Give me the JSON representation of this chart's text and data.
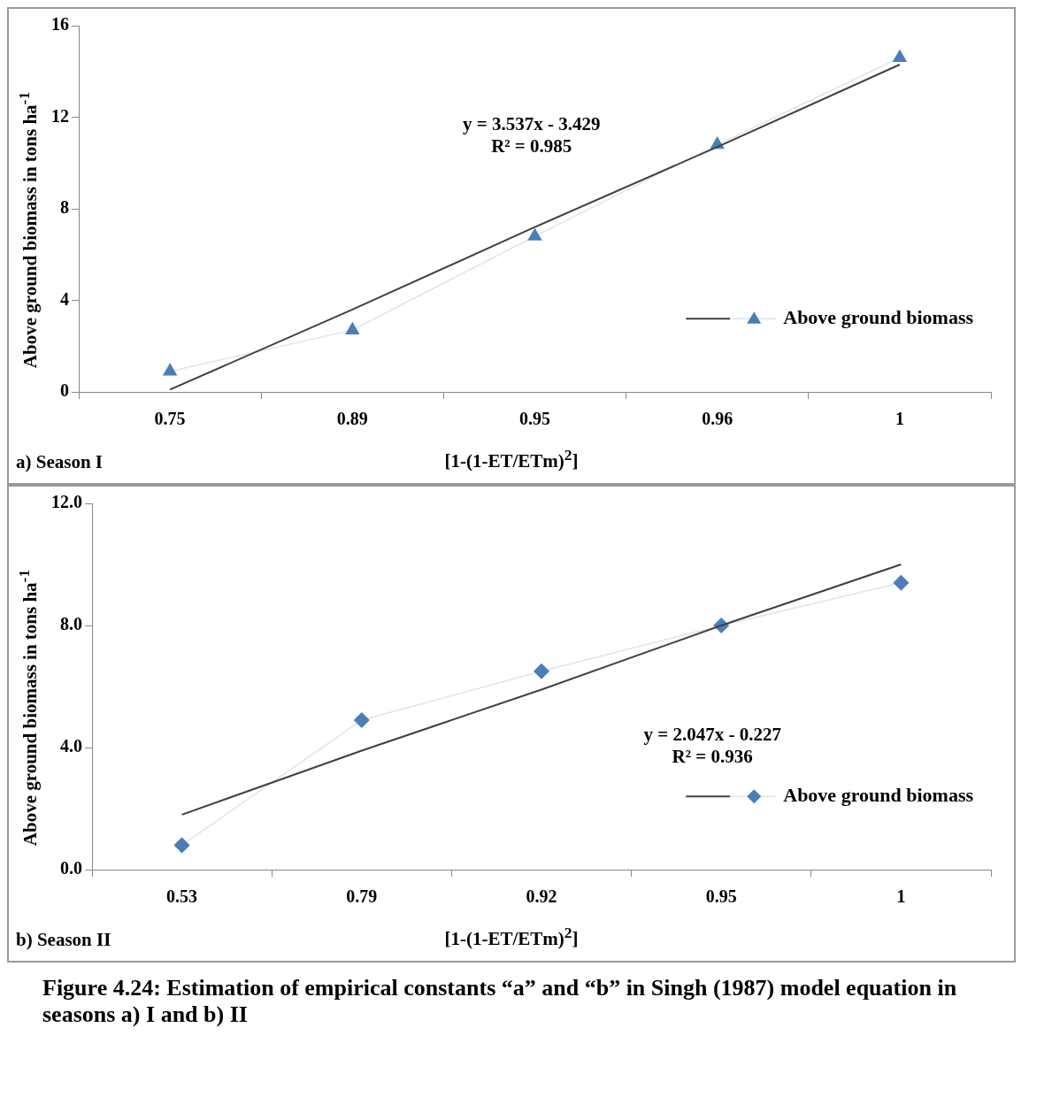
{
  "chart_data": [
    {
      "type": "line",
      "categories": [
        "0.75",
        "0.89",
        "0.95",
        "0.96",
        "1"
      ],
      "xlabel": "[1-(1-ET/ETm)$^{2}$]",
      "ylabel": "Above ground biomass in tons ha$^{-1}$",
      "ylim": [
        0,
        16
      ],
      "yticks": [
        0,
        4,
        8,
        12,
        16
      ],
      "legend": "bottom right",
      "grid": false,
      "annotations": [
        "a) Season I",
        "y = 3.537x - 3.429",
        "R² = 0.985"
      ],
      "series": [
        {
          "type": "line",
          "color": "#404040",
          "marker": "none",
          "values": [
            0.1,
            3.6,
            7.2,
            10.7,
            14.3
          ]
        },
        {
          "name": "Above ground biomass",
          "color": "#4a7ebb",
          "marker": "triangle",
          "values": [
            0.9,
            2.7,
            6.8,
            10.8,
            14.6
          ]
        }
      ]
    },
    {
      "type": "line",
      "categories": [
        "0.53",
        "0.79",
        "0.92",
        "0.95",
        "1"
      ],
      "xlabel": "[1-(1-ET/ETm)$^{2}$]",
      "ylabel": "Above ground biomass in tons ha$^{-1}$",
      "ylim": [
        0,
        12
      ],
      "yticks": [
        {
          "value": 0,
          "label": "0.0"
        },
        {
          "value": 4,
          "label": "4.0"
        },
        {
          "value": 8,
          "label": "8.0"
        },
        {
          "value": 12,
          "label": "12.0"
        }
      ],
      "legend": "bottom right",
      "grid": false,
      "annotations": [
        "b) Season II",
        "y = 2.047x - 0.227",
        "R² = 0.936",
        "Figure 4.24: Estimation of empirical constants “a” and “b” in Singh (1987) model equation in seasons a) I and b) II"
      ],
      "series": [
        {
          "type": "line",
          "color": "#404040",
          "marker": "none",
          "values": [
            1.8,
            3.9,
            5.9,
            8.0,
            10.0
          ]
        },
        {
          "name": "Above ground biomass",
          "color": "#4a7ebb",
          "marker": "diamond",
          "values": [
            0.8,
            4.9,
            6.5,
            8.0,
            9.4
          ]
        }
      ]
    }
  ]
}
